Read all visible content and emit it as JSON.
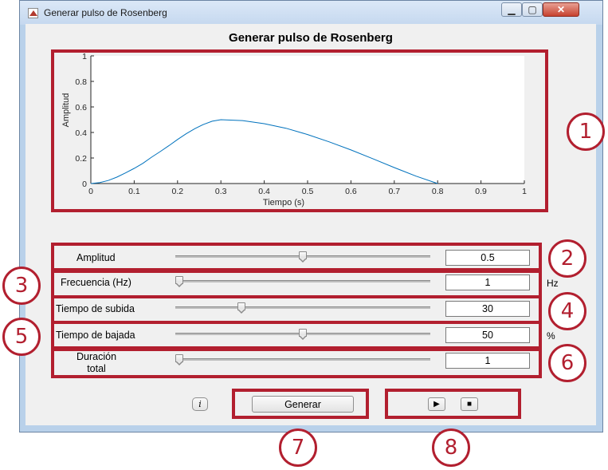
{
  "window": {
    "title": "Generar pulso de Rosenberg",
    "controls": {
      "minimize": "▁",
      "maximize": "▢",
      "close": "✕"
    }
  },
  "figure_title": "Generar pulso de Rosenberg",
  "chart_data": {
    "type": "line",
    "xlabel": "Tiempo (s)",
    "ylabel": "Amplitud",
    "xlim": [
      0,
      1
    ],
    "ylim": [
      0,
      1
    ],
    "xticks": [
      "0",
      "0.1",
      "0.2",
      "0.3",
      "0.4",
      "0.5",
      "0.6",
      "0.7",
      "0.8",
      "0.9",
      "1"
    ],
    "yticks": [
      "0",
      "0.2",
      "0.4",
      "0.6",
      "0.8",
      "1"
    ],
    "series": [
      {
        "color": "#0072bd",
        "x": [
          0,
          0.02,
          0.04,
          0.06,
          0.08,
          0.1,
          0.12,
          0.14,
          0.16,
          0.18,
          0.2,
          0.22,
          0.24,
          0.26,
          0.28,
          0.3,
          0.35,
          0.4,
          0.45,
          0.5,
          0.55,
          0.6,
          0.65,
          0.7,
          0.75,
          0.8
        ],
        "y": [
          0,
          0.007,
          0.024,
          0.05,
          0.083,
          0.119,
          0.158,
          0.206,
          0.25,
          0.296,
          0.345,
          0.39,
          0.43,
          0.463,
          0.488,
          0.5,
          0.493,
          0.469,
          0.433,
          0.384,
          0.326,
          0.263,
          0.195,
          0.125,
          0.058,
          0
        ]
      }
    ]
  },
  "controls": [
    {
      "label": "Amplitud",
      "value": "0.5",
      "slider_fraction": 0.5,
      "unit": ""
    },
    {
      "label": "Frecuencia (Hz)",
      "value": "1",
      "slider_fraction": 0.0,
      "unit": "Hz"
    },
    {
      "label": "Tiempo de subida",
      "value": "30",
      "slider_fraction": 0.25,
      "unit": ""
    },
    {
      "label": "Tiempo de bajada",
      "value": "50",
      "slider_fraction": 0.5,
      "unit": "%"
    },
    {
      "label": "Duración\ntotal",
      "value": "1",
      "slider_fraction": 0.0,
      "unit": ""
    }
  ],
  "buttons": {
    "info": "i",
    "generate": "Generar",
    "play": "▶",
    "stop": "■"
  },
  "callouts": [
    "1",
    "2",
    "3",
    "4",
    "5",
    "6",
    "7",
    "8"
  ],
  "colors": {
    "highlight": "#b21f2f",
    "plot_line": "#0072bd"
  }
}
